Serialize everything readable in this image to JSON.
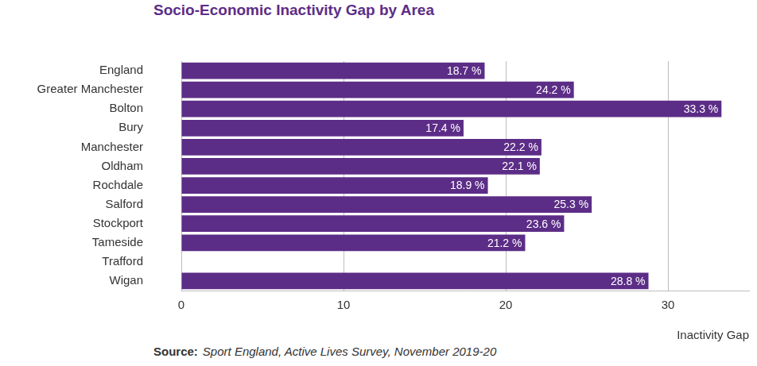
{
  "chart_data": {
    "type": "bar",
    "orientation": "horizontal",
    "title": "Socio-Economic Inactivity Gap by Area",
    "x_label": "Inactivity Gap",
    "source_label": "Source:",
    "source": "Sport England, Active Lives Survey, November 2019-20",
    "categories": [
      "England",
      "Greater Manchester",
      "Bolton",
      "Bury",
      "Manchester",
      "Oldham",
      "Rochdale",
      "Salford",
      "Stockport",
      "Tameside",
      "Trafford",
      "Wigan"
    ],
    "values": [
      18.7,
      24.2,
      33.3,
      17.4,
      22.2,
      22.1,
      18.9,
      25.3,
      23.6,
      21.2,
      null,
      28.8
    ],
    "value_labels": [
      "18.7 %",
      "24.2 %",
      "33.3 %",
      "17.4 %",
      "22.2 %",
      "22.1 %",
      "18.9 %",
      "25.3 %",
      "23.6 %",
      "21.2 %",
      null,
      "28.8 %"
    ],
    "data_labels": true,
    "color": "#5c2d87",
    "xlim": [
      0,
      35
    ],
    "xticks": [
      0,
      10,
      20,
      30
    ],
    "grid": true
  }
}
